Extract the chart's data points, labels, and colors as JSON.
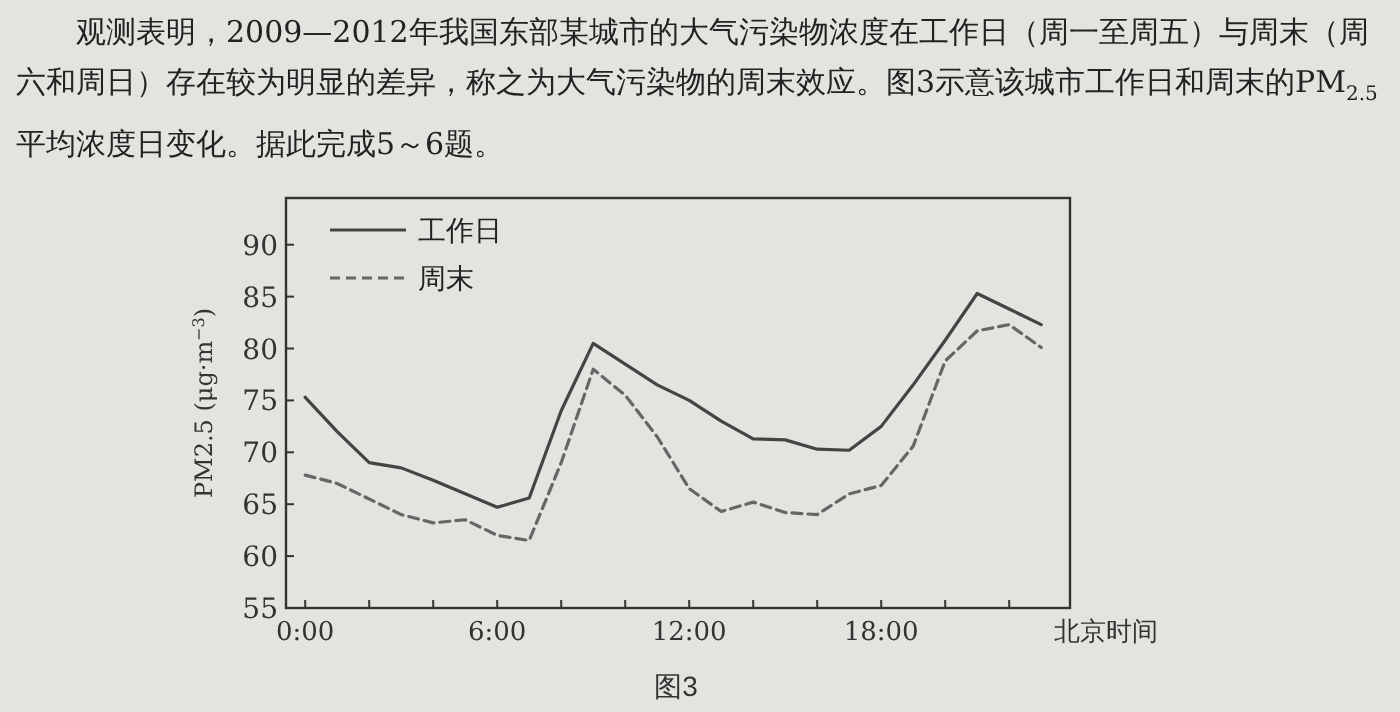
{
  "chart_data": {
    "type": "line",
    "title": "观测表明，2009—2012年我国东部某城市的大气污染物浓度在工作日（周一至周五）与周末（周六和周日）存在较为明显的差异，称之为大气污染物的周末效应。图3示意该城市工作日和周末的PM$_{2.5}$平均浓度日变化。据此完成5～6题。",
    "xlabel": "北京时间",
    "ylabel": "PM2.5 (μg·m$^{−3}$)",
    "annotations": [
      "图3"
    ],
    "x": [
      0,
      1,
      2,
      3,
      4,
      5,
      6,
      7,
      8,
      9,
      10,
      11,
      12,
      13,
      14,
      15,
      16,
      17,
      18,
      19,
      20,
      21,
      22,
      23
    ],
    "xlim": [
      -0.6,
      23.9
    ],
    "xticks": [
      {
        "value": 0,
        "label": "0:00"
      },
      {
        "value": 2,
        "label": null
      },
      {
        "value": 4,
        "label": null
      },
      {
        "value": 6,
        "label": "6:00"
      },
      {
        "value": 8,
        "label": null
      },
      {
        "value": 10,
        "label": null
      },
      {
        "value": 12,
        "label": "12:00"
      },
      {
        "value": 14,
        "label": null
      },
      {
        "value": 16,
        "label": null
      },
      {
        "value": 18,
        "label": "18:00"
      },
      {
        "value": 20,
        "label": null
      },
      {
        "value": 22,
        "label": null
      }
    ],
    "ylim": [
      55,
      94.5
    ],
    "yticks": [
      55,
      60,
      65,
      70,
      75,
      80,
      85,
      90
    ],
    "legend": "top left",
    "grid": false,
    "series": [
      {
        "name": "工作日",
        "color": "#444444",
        "line_style": "solid",
        "values": [
          75.3,
          72,
          69,
          68.5,
          67.3,
          66,
          64.7,
          65.6,
          74,
          80.5,
          78.5,
          76.5,
          75,
          73,
          71.3,
          71.2,
          70.3,
          70.2,
          72.5,
          76.5,
          80.8,
          85.3,
          83.8,
          82.3
        ]
      },
      {
        "name": "周末",
        "color": "#666666",
        "line_style": "dashed",
        "values": [
          67.8,
          67,
          65.5,
          64,
          63.2,
          63.5,
          62,
          61.5,
          69,
          78,
          75.5,
          71.5,
          66.5,
          64.3,
          65.2,
          64.2,
          64,
          66,
          66.8,
          70.6,
          78.8,
          81.7,
          82.3,
          80.1
        ]
      }
    ]
  }
}
